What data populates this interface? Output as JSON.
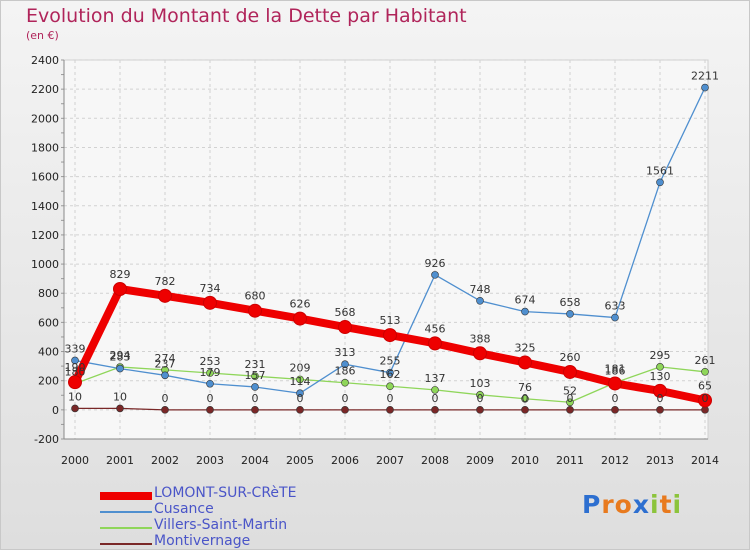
{
  "header": {
    "title": "Evolution du Montant de la Dette par Habitant",
    "subtitle": "(en €)"
  },
  "brand": {
    "text": "Proxiti",
    "letters": [
      "P",
      "r",
      "o",
      "x",
      "i",
      "t",
      "i"
    ],
    "letter_colors": [
      "#2d6fd0",
      "#e87a1e",
      "#e87a1e",
      "#2d6fd0",
      "#8cc43c",
      "#e87a1e",
      "#8cc43c"
    ]
  },
  "chart_data": {
    "type": "line",
    "title": "Evolution du Montant de la Dette par Habitant",
    "ylabel": "(en €)",
    "xlabel": "",
    "categories": [
      "2000",
      "2001",
      "2002",
      "2003",
      "2004",
      "2005",
      "2006",
      "2007",
      "2008",
      "2009",
      "2010",
      "2011",
      "2012",
      "2013",
      "2014"
    ],
    "ylim": [
      -200,
      2400
    ],
    "yticks": [
      -200,
      0,
      200,
      400,
      600,
      800,
      1000,
      1200,
      1400,
      1600,
      1800,
      2000,
      2200,
      2400
    ],
    "grid": true,
    "legend_position": "bottom-left",
    "series": [
      {
        "name": "LOMONT-SUR-CRèTE",
        "color": "#ee0000",
        "emphasis": true,
        "values": [
          190,
          829,
          782,
          734,
          680,
          626,
          568,
          513,
          456,
          388,
          325,
          260,
          181,
          130,
          65
        ],
        "labels": [
          "190",
          "829",
          "782",
          "734",
          "680",
          "626",
          "568",
          "513",
          "456",
          "388",
          "325",
          "260",
          "181",
          "130",
          "65"
        ]
      },
      {
        "name": "Cusance",
        "color": "#4f8fcf",
        "emphasis": false,
        "values": [
          339,
          283,
          237,
          179,
          157,
          114,
          313,
          255,
          926,
          748,
          674,
          658,
          633,
          1561,
          2211
        ],
        "labels": [
          "339",
          "283",
          "237",
          "179",
          "157",
          "114",
          "313",
          "255",
          "926",
          "748",
          "674",
          "658",
          "633",
          "1561",
          "2211"
        ]
      },
      {
        "name": "Villers-Saint-Martin",
        "color": "#8fd65a",
        "emphasis": false,
        "values": [
          180,
          294,
          274,
          253,
          231,
          209,
          186,
          162,
          137,
          103,
          76,
          52,
          186,
          295,
          261
        ],
        "labels": [
          "180",
          "294",
          "274",
          "253",
          "231",
          "209",
          "186",
          "162",
          "137",
          "103",
          "76",
          "52",
          "186",
          "295",
          "261"
        ]
      },
      {
        "name": "Montivernage",
        "color": "#7a2828",
        "emphasis": false,
        "values": [
          10,
          10,
          0,
          0,
          0,
          0,
          0,
          0,
          0,
          0,
          0,
          0,
          0,
          0,
          0
        ],
        "labels": [
          "10",
          "10",
          "0",
          "0",
          "0",
          "0",
          "0",
          "0",
          "0",
          "0",
          "0",
          "0",
          "0",
          "0",
          "0"
        ]
      }
    ]
  }
}
